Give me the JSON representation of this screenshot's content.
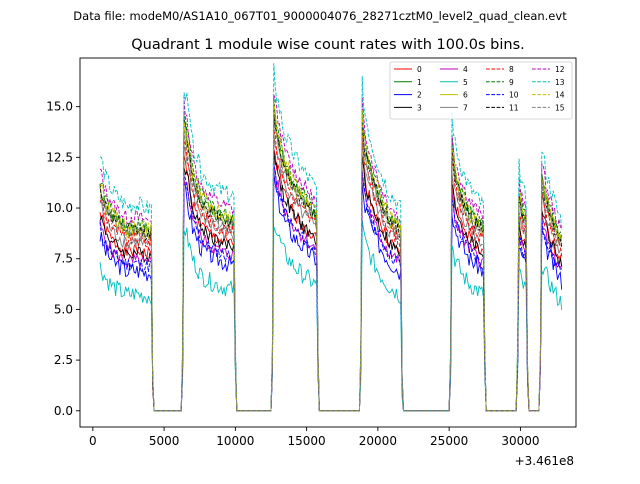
{
  "figure": {
    "suptitle": "Data file: modeM0/AS1A10_067T01_9000004076_28271cztM0_level2_quad_clean.evt"
  },
  "chart_data": {
    "type": "line",
    "title": "Quadrant 1 module wise count rates with 100.0s bins.",
    "xlabel": "",
    "ylabel": "",
    "x_offset_label": "+3.461e8",
    "xlim": [
      -900,
      33900
    ],
    "ylim": [
      -0.8,
      17.4
    ],
    "xticks": [
      0,
      5000,
      10000,
      15000,
      20000,
      25000,
      30000
    ],
    "xtick_labels": [
      "0",
      "5000",
      "10000",
      "15000",
      "20000",
      "25000",
      "30000"
    ],
    "yticks": [
      0.0,
      2.5,
      5.0,
      7.5,
      10.0,
      12.5,
      15.0
    ],
    "ytick_labels": [
      "0.0",
      "2.5",
      "5.0",
      "7.5",
      "10.0",
      "12.5",
      "15.0"
    ],
    "grid": false,
    "legend_location": "top-right",
    "legend_columns": 4,
    "bin_width_s": 100,
    "profile_points": [
      [
        500,
        10.5
      ],
      [
        900,
        9.6
      ],
      [
        1400,
        9.0
      ],
      [
        1900,
        8.7
      ],
      [
        2400,
        8.4
      ],
      [
        2900,
        8.5
      ],
      [
        3400,
        8.4
      ],
      [
        3900,
        8.3
      ],
      [
        4100,
        8.4
      ],
      [
        4200,
        1.5
      ],
      [
        4300,
        0
      ],
      [
        6200,
        0
      ],
      [
        6300,
        2.5
      ],
      [
        6400,
        13.4
      ],
      [
        6600,
        12.7
      ],
      [
        7000,
        11.0
      ],
      [
        7600,
        9.8
      ],
      [
        8200,
        9.4
      ],
      [
        8800,
        9.1
      ],
      [
        9400,
        8.9
      ],
      [
        9900,
        8.8
      ],
      [
        10000,
        2.5
      ],
      [
        10100,
        0
      ],
      [
        12500,
        0
      ],
      [
        12600,
        2.5
      ],
      [
        12700,
        14.0
      ],
      [
        12900,
        13.0
      ],
      [
        13400,
        11.5
      ],
      [
        14000,
        10.6
      ],
      [
        14600,
        10.0
      ],
      [
        15200,
        9.5
      ],
      [
        15700,
        9.1
      ],
      [
        15800,
        2.5
      ],
      [
        15900,
        0
      ],
      [
        18700,
        0
      ],
      [
        18800,
        2.5
      ],
      [
        18900,
        13.4
      ],
      [
        19100,
        12.2
      ],
      [
        19600,
        10.9
      ],
      [
        20200,
        9.8
      ],
      [
        20800,
        9.0
      ],
      [
        21300,
        8.6
      ],
      [
        21600,
        8.3
      ],
      [
        21700,
        1.5
      ],
      [
        21800,
        0
      ],
      [
        25000,
        0
      ],
      [
        25100,
        2.5
      ],
      [
        25200,
        12.2
      ],
      [
        25400,
        11.0
      ],
      [
        25900,
        9.9
      ],
      [
        26400,
        9.2
      ],
      [
        26900,
        8.8
      ],
      [
        27400,
        8.4
      ],
      [
        27500,
        2.5
      ],
      [
        27600,
        0
      ],
      [
        29700,
        0
      ],
      [
        29800,
        2.5
      ],
      [
        29900,
        10.0
      ],
      [
        30200,
        9.0
      ],
      [
        30400,
        8.7
      ],
      [
        30500,
        2.0
      ],
      [
        30600,
        0
      ],
      [
        31300,
        0
      ],
      [
        31400,
        2.5
      ],
      [
        31500,
        10.8
      ],
      [
        31800,
        9.8
      ],
      [
        32200,
        9.0
      ],
      [
        32600,
        8.2
      ],
      [
        32900,
        7.8
      ]
    ],
    "series": [
      {
        "name": "0",
        "color": "#ff0000",
        "dash": "solid",
        "scale": 0.93,
        "noise": 0.35,
        "seed": 1
      },
      {
        "name": "1",
        "color": "#008000",
        "dash": "solid",
        "scale": 1.06,
        "noise": 0.35,
        "seed": 2
      },
      {
        "name": "2",
        "color": "#0000ff",
        "dash": "solid",
        "scale": 0.82,
        "noise": 0.45,
        "seed": 3
      },
      {
        "name": "3",
        "color": "#000000",
        "dash": "solid",
        "scale": 0.92,
        "noise": 0.35,
        "seed": 4
      },
      {
        "name": "4",
        "color": "#bf00bf",
        "dash": "solid",
        "scale": 0.87,
        "noise": 0.35,
        "seed": 5
      },
      {
        "name": "5",
        "color": "#00bfbf",
        "dash": "solid",
        "scale": 0.68,
        "noise": 0.45,
        "seed": 6
      },
      {
        "name": "6",
        "color": "#bfbf00",
        "dash": "solid",
        "scale": 1.05,
        "noise": 0.35,
        "seed": 7
      },
      {
        "name": "7",
        "color": "#808080",
        "dash": "solid",
        "scale": 0.98,
        "noise": 0.35,
        "seed": 8
      },
      {
        "name": "8",
        "color": "#ff0000",
        "dash": "dashed",
        "scale": 1.0,
        "noise": 0.35,
        "seed": 9
      },
      {
        "name": "9",
        "color": "#008000",
        "dash": "dashed",
        "scale": 1.09,
        "noise": 0.35,
        "seed": 10
      },
      {
        "name": "10",
        "color": "#0000ff",
        "dash": "dashed",
        "scale": 0.86,
        "noise": 0.35,
        "seed": 11
      },
      {
        "name": "11",
        "color": "#000000",
        "dash": "dashed",
        "scale": 1.05,
        "noise": 0.35,
        "seed": 12
      },
      {
        "name": "12",
        "color": "#bf00bf",
        "dash": "dashed",
        "scale": 1.13,
        "noise": 0.35,
        "seed": 13
      },
      {
        "name": "13",
        "color": "#00bfbf",
        "dash": "dashed",
        "scale": 1.2,
        "noise": 0.45,
        "seed": 14
      },
      {
        "name": "14",
        "color": "#bfbf00",
        "dash": "dashed",
        "scale": 1.08,
        "noise": 0.35,
        "seed": 15
      },
      {
        "name": "15",
        "color": "#808080",
        "dash": "dashed",
        "scale": 1.03,
        "noise": 0.35,
        "seed": 16
      }
    ]
  }
}
